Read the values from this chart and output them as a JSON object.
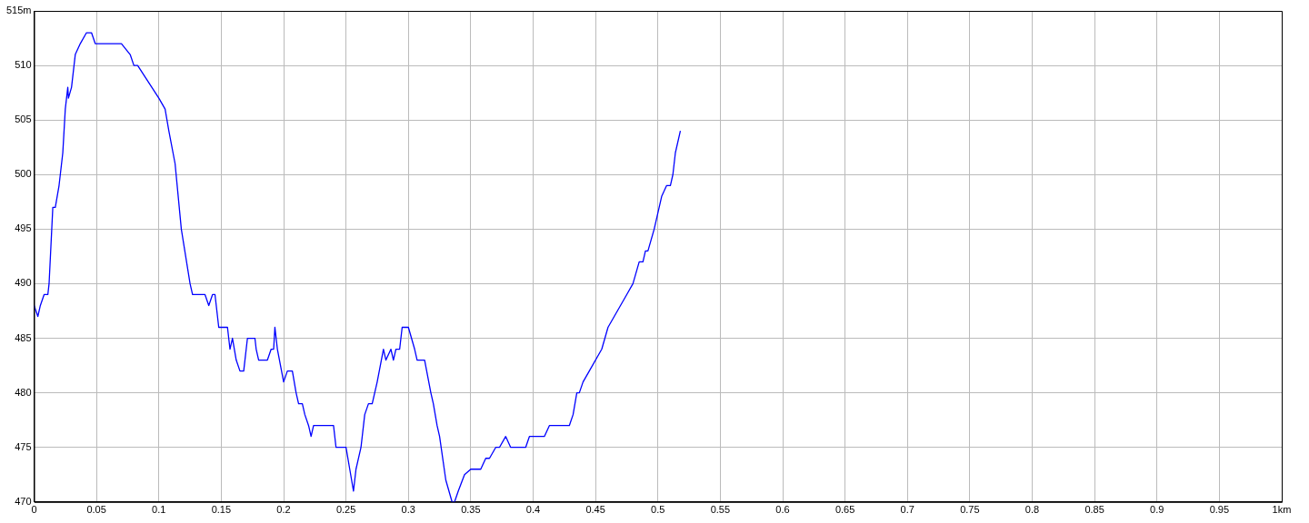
{
  "chart_data": {
    "type": "line",
    "grid": true,
    "legend": false,
    "marker": "none",
    "line_style": "solid",
    "xlim": [
      0,
      1
    ],
    "ylim": [
      470,
      515
    ],
    "xticks": [
      0,
      0.05,
      0.1,
      0.15,
      0.2,
      0.25,
      0.3,
      0.35,
      0.4,
      0.45,
      0.5,
      0.55,
      0.6,
      0.65,
      0.7,
      0.75,
      0.8,
      0.85,
      0.9,
      0.95,
      {
        "value": 1,
        "label": "1km"
      }
    ],
    "yticks": [
      470,
      475,
      480,
      485,
      490,
      495,
      500,
      505,
      510,
      {
        "value": 515,
        "label": "515m"
      }
    ],
    "series": [
      {
        "color": "#0000ff",
        "x": [
          0,
          0.003,
          0.005,
          0.008,
          0.011,
          0.012,
          0.015,
          0.017,
          0.02,
          0.023,
          0.025,
          0.027,
          0.0275,
          0.03,
          0.033,
          0.037,
          0.042,
          0.046,
          0.049,
          0.07,
          0.077,
          0.08,
          0.083,
          0.1,
          0.105,
          0.108,
          0.113,
          0.118,
          0.125,
          0.127,
          0.137,
          0.14,
          0.143,
          0.145,
          0.148,
          0.155,
          0.157,
          0.159,
          0.162,
          0.165,
          0.168,
          0.171,
          0.177,
          0.178,
          0.18,
          0.187,
          0.19,
          0.192,
          0.193,
          0.195,
          0.2,
          0.203,
          0.207,
          0.21,
          0.212,
          0.215,
          0.217,
          0.22,
          0.222,
          0.224,
          0.24,
          0.242,
          0.25,
          0.253,
          0.256,
          0.258,
          0.262,
          0.265,
          0.268,
          0.271,
          0.275,
          0.28,
          0.282,
          0.286,
          0.288,
          0.29,
          0.293,
          0.295,
          0.3,
          0.305,
          0.307,
          0.313,
          0.318,
          0.32,
          0.323,
          0.325,
          0.33,
          0.335,
          0.337,
          0.34,
          0.345,
          0.35,
          0.358,
          0.362,
          0.365,
          0.37,
          0.373,
          0.378,
          0.382,
          0.394,
          0.397,
          0.409,
          0.413,
          0.429,
          0.432,
          0.435,
          0.437,
          0.44,
          0.445,
          0.455,
          0.46,
          0.465,
          0.475,
          0.48,
          0.485,
          0.488,
          0.49,
          0.492,
          0.497,
          0.503,
          0.507,
          0.51,
          0.512,
          0.514,
          0.518
        ],
        "values": [
          488,
          487,
          488,
          489,
          489,
          490,
          497,
          497,
          499,
          502,
          506,
          508,
          507,
          508,
          511,
          512,
          513,
          513,
          512,
          512,
          511,
          510,
          510,
          507,
          506,
          504,
          501,
          495,
          490,
          489,
          489,
          488,
          489,
          489,
          486,
          486,
          484,
          485,
          483,
          482,
          482,
          485,
          485,
          484,
          483,
          483,
          484,
          484,
          486,
          484,
          481,
          482,
          482,
          480,
          479,
          479,
          478,
          477,
          476,
          477,
          477,
          475,
          475,
          473,
          471,
          473,
          475,
          478,
          479,
          479,
          481,
          484,
          483,
          484,
          483,
          484,
          484,
          486,
          486,
          484,
          483,
          483,
          480,
          479,
          477,
          476,
          472,
          470,
          470,
          471,
          472.5,
          473,
          473,
          474,
          474,
          475,
          475,
          476,
          475,
          475,
          476,
          476,
          477,
          477,
          478,
          480,
          480,
          481,
          482,
          484,
          486,
          487,
          489,
          490,
          492,
          492,
          493,
          493,
          495,
          498,
          499,
          499,
          500,
          502,
          504
        ]
      }
    ]
  }
}
